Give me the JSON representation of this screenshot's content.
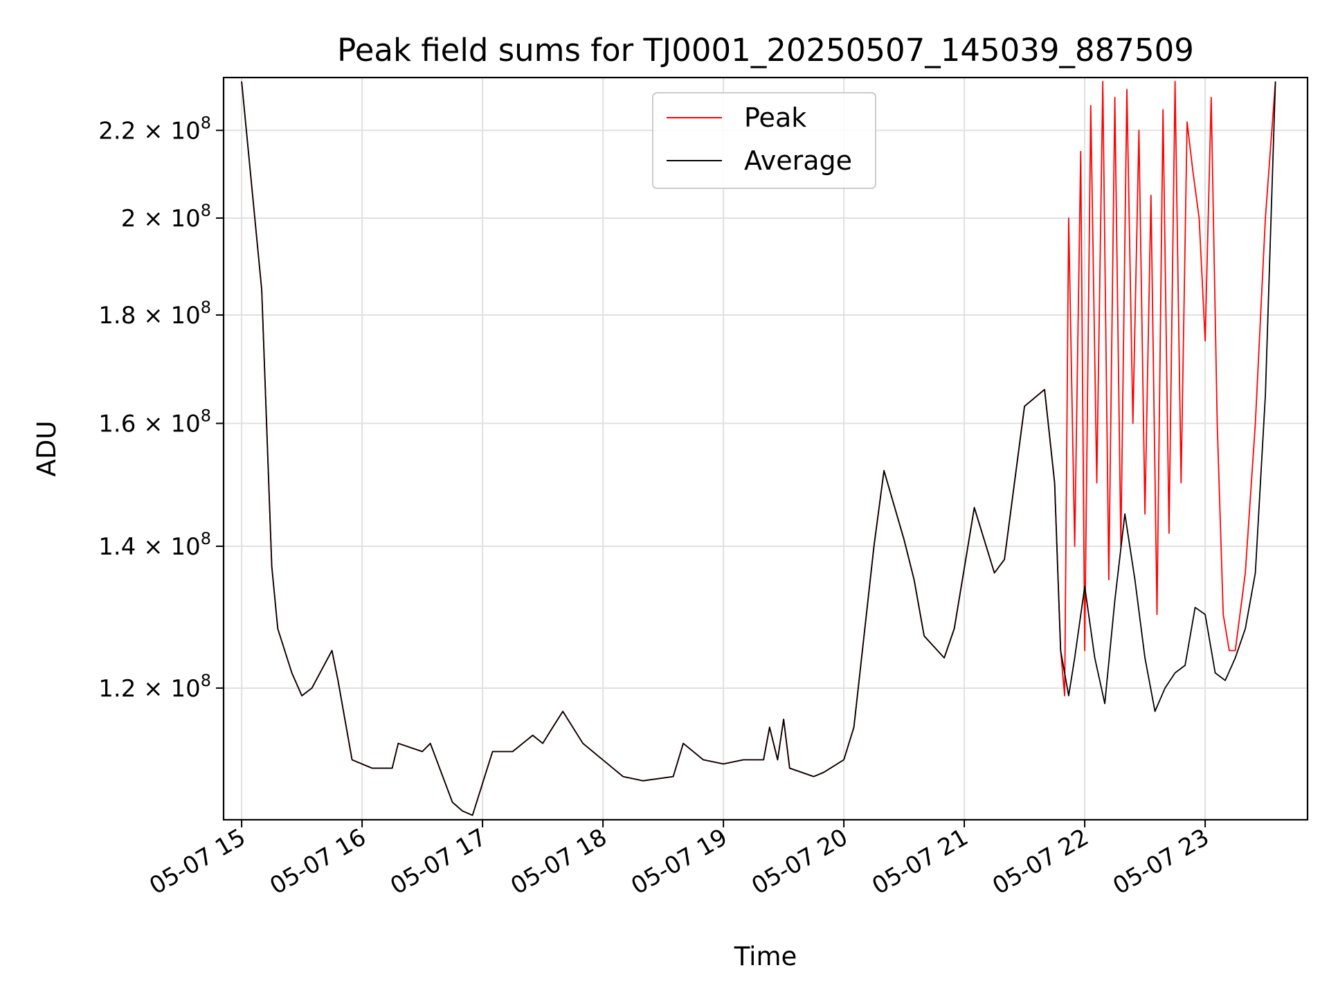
{
  "chart_data": {
    "type": "line",
    "title": "Peak field sums for TJ0001_20250507_145039_887509",
    "xlabel": "Time",
    "ylabel": "ADU",
    "yscale": "log",
    "ylim": [
      104000000,
      233000000
    ],
    "xlim": [
      "05-07 14:51",
      "05-07 23:51"
    ],
    "grid": true,
    "legend_position": "top-center",
    "x_ticks": [
      "05-07 15",
      "05-07 16",
      "05-07 17",
      "05-07 18",
      "05-07 19",
      "05-07 20",
      "05-07 21",
      "05-07 22",
      "05-07 23"
    ],
    "y_ticks": [
      {
        "value": 120000000,
        "mantissa": "1.2",
        "exp": "8"
      },
      {
        "value": 140000000,
        "mantissa": "1.4",
        "exp": "8"
      },
      {
        "value": 160000000,
        "mantissa": "1.6",
        "exp": "8"
      },
      {
        "value": 180000000,
        "mantissa": "1.8",
        "exp": "8"
      },
      {
        "value": 200000000,
        "mantissa": "2",
        "exp": "8"
      },
      {
        "value": 220000000,
        "mantissa": "2.2",
        "exp": "8"
      }
    ],
    "series": [
      {
        "name": "Peak",
        "color": "#ff0000",
        "x": [
          "05-07 15:00",
          "05-07 15:10",
          "05-07 15:15",
          "05-07 15:18",
          "05-07 15:25",
          "05-07 15:30",
          "05-07 15:35",
          "05-07 15:45",
          "05-07 15:48",
          "05-07 15:55",
          "05-07 16:05",
          "05-07 16:15",
          "05-07 16:18",
          "05-07 16:30",
          "05-07 16:34",
          "05-07 16:45",
          "05-07 16:50",
          "05-07 16:55",
          "05-07 17:05",
          "05-07 17:15",
          "05-07 17:25",
          "05-07 17:30",
          "05-07 17:35",
          "05-07 17:40",
          "05-07 17:50",
          "05-07 18:10",
          "05-07 18:20",
          "05-07 18:35",
          "05-07 18:40",
          "05-07 18:50",
          "05-07 19:00",
          "05-07 19:10",
          "05-07 19:20",
          "05-07 19:23",
          "05-07 19:27",
          "05-07 19:30",
          "05-07 19:33",
          "05-07 19:45",
          "05-07 19:50",
          "05-07 20:00",
          "05-07 20:05",
          "05-07 20:15",
          "05-07 20:20",
          "05-07 20:30",
          "05-07 20:35",
          "05-07 20:40",
          "05-07 20:50",
          "05-07 20:55",
          "05-07 21:05",
          "05-07 21:15",
          "05-07 21:20",
          "05-07 21:25",
          "05-07 21:30",
          "05-07 21:40",
          "05-07 21:45",
          "05-07 21:48",
          "05-07 21:50",
          "05-07 21:52",
          "05-07 21:55",
          "05-07 21:58",
          "05-07 22:00",
          "05-07 22:03",
          "05-07 22:06",
          "05-07 22:09",
          "05-07 22:12",
          "05-07 22:15",
          "05-07 22:18",
          "05-07 22:21",
          "05-07 22:24",
          "05-07 22:27",
          "05-07 22:30",
          "05-07 22:33",
          "05-07 22:36",
          "05-07 22:39",
          "05-07 22:42",
          "05-07 22:45",
          "05-07 22:48",
          "05-07 22:51",
          "05-07 22:54",
          "05-07 22:57",
          "05-07 23:00",
          "05-07 23:03",
          "05-07 23:06",
          "05-07 23:09",
          "05-07 23:12",
          "05-07 23:15",
          "05-07 23:20",
          "05-07 23:25",
          "05-07 23:30",
          "05-07 23:35"
        ],
        "y": [
          232000000,
          185000000,
          137000000,
          128000000,
          122000000,
          119000000,
          120000000,
          125000000,
          121000000,
          111000000,
          110000000,
          110000000,
          113000000,
          112000000,
          113000000,
          106000000,
          105000000,
          104500000,
          112000000,
          112000000,
          114000000,
          113000000,
          115000000,
          117000000,
          113000000,
          109000000,
          108500000,
          109000000,
          113000000,
          111000000,
          110500000,
          111000000,
          111000000,
          115000000,
          111000000,
          116000000,
          110000000,
          109000000,
          109500000,
          111000000,
          115000000,
          140000000,
          152000000,
          141000000,
          135000000,
          127000000,
          124000000,
          128000000,
          146000000,
          136000000,
          138000000,
          150000000,
          163000000,
          166000000,
          150000000,
          125000000,
          119000000,
          200000000,
          140000000,
          215000000,
          125000000,
          226000000,
          150000000,
          232000000,
          135000000,
          228000000,
          140000000,
          230000000,
          160000000,
          220000000,
          145000000,
          205000000,
          130000000,
          225000000,
          142000000,
          232000000,
          150000000,
          222000000,
          210000000,
          200000000,
          175000000,
          228000000,
          160000000,
          130000000,
          125000000,
          125000000,
          136000000,
          160000000,
          200000000,
          232000000
        ]
      },
      {
        "name": "Average",
        "color": "#000000",
        "x": [
          "05-07 15:00",
          "05-07 15:10",
          "05-07 15:15",
          "05-07 15:18",
          "05-07 15:25",
          "05-07 15:30",
          "05-07 15:35",
          "05-07 15:45",
          "05-07 15:48",
          "05-07 15:55",
          "05-07 16:05",
          "05-07 16:15",
          "05-07 16:18",
          "05-07 16:30",
          "05-07 16:34",
          "05-07 16:45",
          "05-07 16:50",
          "05-07 16:55",
          "05-07 17:05",
          "05-07 17:15",
          "05-07 17:25",
          "05-07 17:30",
          "05-07 17:35",
          "05-07 17:40",
          "05-07 17:50",
          "05-07 18:10",
          "05-07 18:20",
          "05-07 18:35",
          "05-07 18:40",
          "05-07 18:50",
          "05-07 19:00",
          "05-07 19:10",
          "05-07 19:20",
          "05-07 19:23",
          "05-07 19:27",
          "05-07 19:30",
          "05-07 19:33",
          "05-07 19:45",
          "05-07 19:50",
          "05-07 20:00",
          "05-07 20:05",
          "05-07 20:15",
          "05-07 20:20",
          "05-07 20:30",
          "05-07 20:35",
          "05-07 20:40",
          "05-07 20:50",
          "05-07 20:55",
          "05-07 21:05",
          "05-07 21:15",
          "05-07 21:20",
          "05-07 21:25",
          "05-07 21:30",
          "05-07 21:40",
          "05-07 21:45",
          "05-07 21:48",
          "05-07 21:52",
          "05-07 21:55",
          "05-07 22:00",
          "05-07 22:05",
          "05-07 22:10",
          "05-07 22:15",
          "05-07 22:20",
          "05-07 22:25",
          "05-07 22:30",
          "05-07 22:35",
          "05-07 22:40",
          "05-07 22:45",
          "05-07 22:50",
          "05-07 22:55",
          "05-07 23:00",
          "05-07 23:05",
          "05-07 23:10",
          "05-07 23:15",
          "05-07 23:20",
          "05-07 23:25",
          "05-07 23:30",
          "05-07 23:35"
        ],
        "y": [
          232000000,
          185000000,
          137000000,
          128000000,
          122000000,
          119000000,
          120000000,
          125000000,
          121000000,
          111000000,
          110000000,
          110000000,
          113000000,
          112000000,
          113000000,
          106000000,
          105000000,
          104500000,
          112000000,
          112000000,
          114000000,
          113000000,
          115000000,
          117000000,
          113000000,
          109000000,
          108500000,
          109000000,
          113000000,
          111000000,
          110500000,
          111000000,
          111000000,
          115000000,
          111000000,
          116000000,
          110000000,
          109000000,
          109500000,
          111000000,
          115000000,
          140000000,
          152000000,
          141000000,
          135000000,
          127000000,
          124000000,
          128000000,
          146000000,
          136000000,
          138000000,
          150000000,
          163000000,
          166000000,
          150000000,
          125000000,
          119000000,
          124000000,
          134000000,
          124000000,
          118000000,
          132000000,
          145000000,
          135000000,
          124000000,
          117000000,
          120000000,
          122000000,
          123000000,
          131000000,
          130000000,
          122000000,
          121000000,
          124000000,
          128000000,
          136000000,
          165000000,
          232000000
        ]
      }
    ]
  }
}
